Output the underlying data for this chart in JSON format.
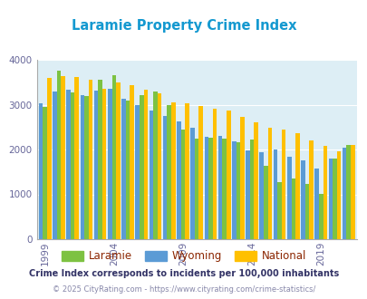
{
  "title": "Laramie Property Crime Index",
  "years": [
    1999,
    2000,
    2001,
    2002,
    2003,
    2004,
    2005,
    2006,
    2007,
    2008,
    2009,
    2010,
    2011,
    2012,
    2013,
    2014,
    2015,
    2016,
    2017,
    2018,
    2019,
    2020,
    2021
  ],
  "laramie": [
    2950,
    3760,
    3280,
    3200,
    3550,
    3650,
    3100,
    3220,
    3290,
    3000,
    2450,
    2240,
    2260,
    2240,
    2160,
    2220,
    1630,
    1270,
    1360,
    1240,
    1020,
    1800,
    2100
  ],
  "wyoming": [
    3030,
    3290,
    3330,
    3210,
    3320,
    3360,
    3140,
    3000,
    2860,
    2740,
    2620,
    2490,
    2290,
    2310,
    2190,
    1980,
    1940,
    1990,
    1840,
    1760,
    1580,
    1800,
    2050
  ],
  "national": [
    3600,
    3640,
    3610,
    3560,
    3350,
    3500,
    3430,
    3340,
    3250,
    3050,
    3040,
    2960,
    2900,
    2870,
    2730,
    2600,
    2490,
    2450,
    2360,
    2200,
    2090,
    1950,
    2100
  ],
  "bar_colors": {
    "laramie": "#7dc242",
    "wyoming": "#5b9bd5",
    "national": "#ffc000"
  },
  "bg_color": "#ddeef5",
  "ylim": [
    0,
    4000
  ],
  "yticks": [
    0,
    1000,
    2000,
    3000,
    4000
  ],
  "xlabel_ticks": [
    1999,
    2004,
    2009,
    2014,
    2019
  ],
  "footnote1": "Crime Index corresponds to incidents per 100,000 inhabitants",
  "footnote2": "© 2025 CityRating.com - https://www.cityrating.com/crime-statistics/",
  "legend_labels": [
    "Laramie",
    "Wyoming",
    "National"
  ],
  "title_color": "#1499d0",
  "footnote1_color": "#333366",
  "footnote2_color": "#8888aa",
  "legend_label_color": "#8B2500"
}
